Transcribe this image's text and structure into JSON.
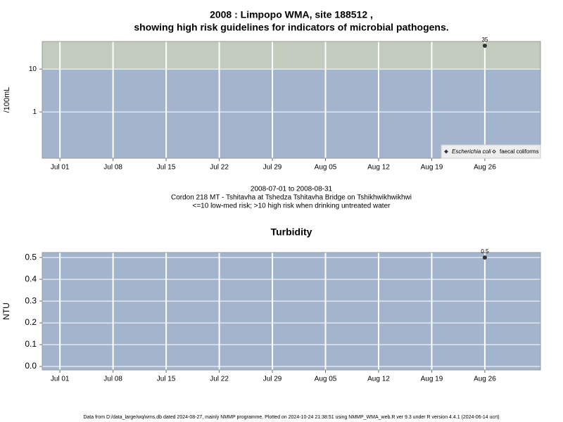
{
  "chart_data": [
    {
      "type": "scatter",
      "title": [
        "2008 : Limpopo WMA, site 188512 ,",
        "showing high risk guidelines for indicators of microbial pathogens."
      ],
      "y_label": "/100mL",
      "log_y": true,
      "ylim": [
        0.083,
        44
      ],
      "yticks": [
        1,
        10
      ],
      "xlim": [
        "2008-06-28T16:00",
        "2008-09-02T08:00"
      ],
      "xticks": [
        {
          "value": "2008-07-01",
          "label": "Jul 01"
        },
        {
          "value": "2008-07-08",
          "label": "Jul 08"
        },
        {
          "value": "2008-07-15",
          "label": "Jul 15"
        },
        {
          "value": "2008-07-22",
          "label": "Jul 22"
        },
        {
          "value": "2008-07-29",
          "label": "Jul 29"
        },
        {
          "value": "2008-08-05",
          "label": "Aug 05"
        },
        {
          "value": "2008-08-12",
          "label": "Aug 12"
        },
        {
          "value": "2008-08-19",
          "label": "Aug 19"
        },
        {
          "value": "2008-08-26",
          "label": "Aug 26"
        }
      ],
      "grid": true,
      "threshold": 10,
      "band_colors": {
        "below": "#a3b5cc",
        "above": "#c3cbbe"
      },
      "legend": "lower right",
      "series": [
        {
          "name": "Escherichia coli",
          "color": "#333333",
          "filled": true,
          "x": [
            "2008-08-26"
          ],
          "values": [
            35
          ]
        },
        {
          "name": "faecal coliforms",
          "color": "#333333",
          "filled": false,
          "x": [],
          "values": []
        }
      ],
      "annotations": [
        "2008-07-01 to 2008-08-31",
        "Cordon 218 MT - Tshitavha at Tshedza Tshitavha Bridge on Tshikhwikhwikhwi",
        "<=10 low-med risk; >10 high risk when drinking untreated water"
      ]
    },
    {
      "type": "scatter",
      "title": [
        "Turbidity"
      ],
      "y_label": "NTU",
      "log_y": false,
      "ylim": [
        -0.016,
        0.523
      ],
      "yticks": [
        {
          "value": 0,
          "label": "0.0"
        },
        0.1,
        0.2,
        0.3,
        0.4,
        0.5
      ],
      "xlim": [
        "2008-06-28T16:00",
        "2008-09-02T08:00"
      ],
      "xticks": [
        {
          "value": "2008-07-01",
          "label": "Jul 01"
        },
        {
          "value": "2008-07-08",
          "label": "Jul 08"
        },
        {
          "value": "2008-07-15",
          "label": "Jul 15"
        },
        {
          "value": "2008-07-22",
          "label": "Jul 22"
        },
        {
          "value": "2008-07-29",
          "label": "Jul 29"
        },
        {
          "value": "2008-08-05",
          "label": "Aug 05"
        },
        {
          "value": "2008-08-12",
          "label": "Aug 12"
        },
        {
          "value": "2008-08-19",
          "label": "Aug 19"
        },
        {
          "value": "2008-08-26",
          "label": "Aug 26"
        }
      ],
      "grid": true,
      "background": "#a3b5cc",
      "color": "#333333",
      "x": [
        "2008-08-26"
      ],
      "values": [
        0.5
      ]
    }
  ],
  "footer": "Data from D:/data_large/wq/wms.db dated 2024-08-27, mainly NMMP programme. Plotted on 2024-10-24 21:38:51 using NMMP_WMA_web.R ver 9.3 under R version 4.4.1 (2024-06-14 ucrt)"
}
